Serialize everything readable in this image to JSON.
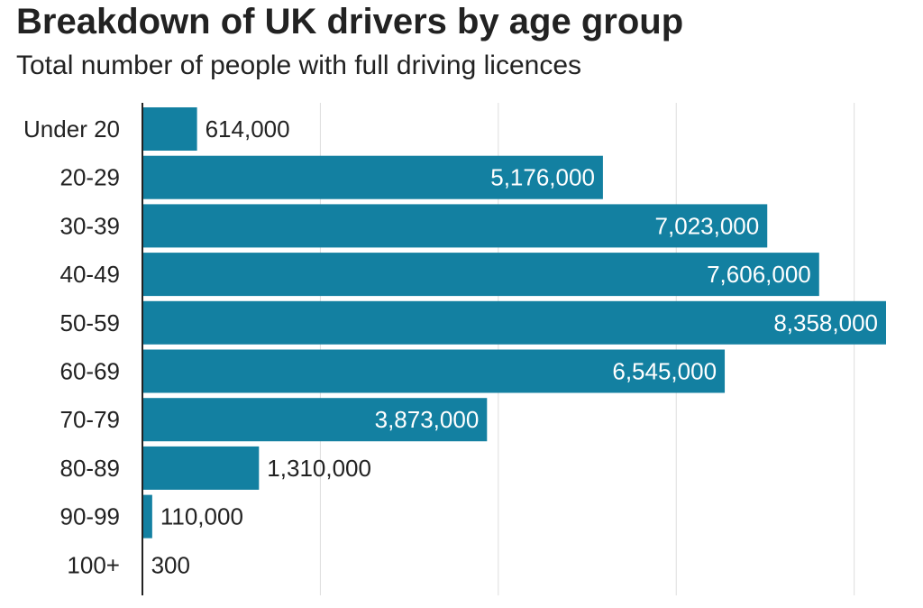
{
  "chart_data": {
    "type": "bar",
    "orientation": "horizontal",
    "title": "Breakdown of UK drivers by age group",
    "subtitle": "Total number of people with full driving licences",
    "categories": [
      "Under 20",
      "20-29",
      "30-39",
      "40-49",
      "50-59",
      "60-69",
      "70-79",
      "80-89",
      "90-99",
      "100+"
    ],
    "values": [
      614000,
      5176000,
      7023000,
      7606000,
      8358000,
      6545000,
      3873000,
      1310000,
      110000,
      300
    ],
    "value_labels": [
      "614,000",
      "5,176,000",
      "7,023,000",
      "7,606,000",
      "8,358,000",
      "6,545,000",
      "3,873,000",
      "1,310,000",
      "110,000",
      "300"
    ],
    "xlim": [
      0,
      8400000
    ],
    "gridlines": [
      2000000,
      4000000,
      6000000,
      8000000
    ],
    "grid": true,
    "legend": "none",
    "bar_color": "#1380a1",
    "label_inside_color": "#ffffff",
    "label_outside_color": "#222222"
  }
}
